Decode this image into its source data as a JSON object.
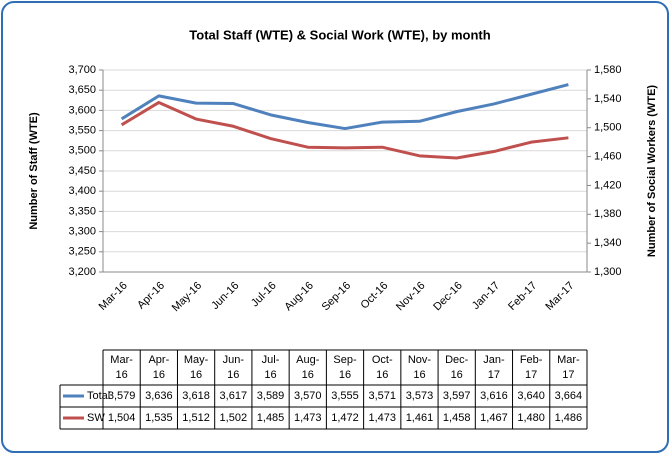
{
  "chart_data": {
    "type": "line",
    "title": "Total Staff (WTE) & Social Work (WTE), by month",
    "y_label": "Number of Staff (WTE)",
    "y2_label": "Number of Social Workers (WTE)",
    "categories": [
      "Mar-16",
      "Apr-16",
      "May-16",
      "Jun-16",
      "Jul-16",
      "Aug-16",
      "Sep-16",
      "Oct-16",
      "Nov-16",
      "Dec-16",
      "Jan-17",
      "Feb-17",
      "Mar-17"
    ],
    "series": [
      {
        "name": "Total",
        "color": "#4f81bd",
        "values": [
          3579,
          3636,
          3618,
          3617,
          3589,
          3570,
          3555,
          3571,
          3573,
          3597,
          3616,
          3640,
          3664
        ],
        "value_labels": [
          "3,579",
          "3,636",
          "3,618",
          "3,617",
          "3,589",
          "3,570",
          "3,555",
          "3,571",
          "3,573",
          "3,597",
          "3,616",
          "3,640",
          "3,664"
        ]
      },
      {
        "name": "SW",
        "color": "#c0504d",
        "axis": "y2",
        "values": [
          1504,
          1535,
          1512,
          1502,
          1485,
          1473,
          1472,
          1473,
          1461,
          1458,
          1467,
          1480,
          1486
        ],
        "value_labels": [
          "1,504",
          "1,535",
          "1,512",
          "1,502",
          "1,485",
          "1,473",
          "1,472",
          "1,473",
          "1,461",
          "1,458",
          "1,467",
          "1,480",
          "1,486"
        ]
      }
    ],
    "ylim": [
      3200,
      3700
    ],
    "yticks": [
      {
        "value": 3200,
        "label": "3,200"
      },
      {
        "value": 3250,
        "label": "3,250"
      },
      {
        "value": 3300,
        "label": "3,300"
      },
      {
        "value": 3350,
        "label": "3,350"
      },
      {
        "value": 3400,
        "label": "3,400"
      },
      {
        "value": 3450,
        "label": "3,450"
      },
      {
        "value": 3500,
        "label": "3,500"
      },
      {
        "value": 3550,
        "label": "3,550"
      },
      {
        "value": 3600,
        "label": "3,600"
      },
      {
        "value": 3650,
        "label": "3,650"
      },
      {
        "value": 3700,
        "label": "3,700"
      }
    ],
    "y2lim": [
      1300,
      1580
    ],
    "y2ticks": [
      {
        "value": 1300,
        "label": "1,300"
      },
      {
        "value": 1340,
        "label": "1,340"
      },
      {
        "value": 1380,
        "label": "1,380"
      },
      {
        "value": 1420,
        "label": "1,420"
      },
      {
        "value": 1460,
        "label": "1,460"
      },
      {
        "value": 1500,
        "label": "1,500"
      },
      {
        "value": 1540,
        "label": "1,540"
      },
      {
        "value": 1580,
        "label": "1,580"
      }
    ],
    "grid": true
  }
}
